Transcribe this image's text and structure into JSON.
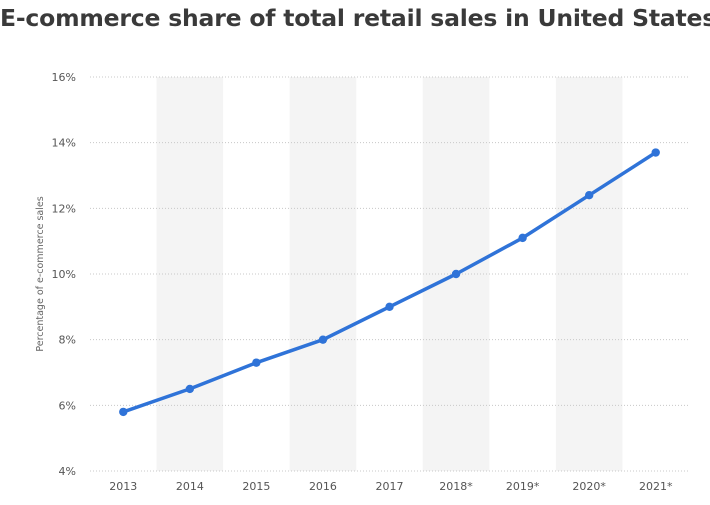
{
  "chart_data": {
    "type": "line",
    "title": "E-commerce share of total retail sales in United States",
    "xlabel": "",
    "ylabel": "Percentage of e-commerce sales",
    "categories": [
      "2013",
      "2014",
      "2015",
      "2016",
      "2017",
      "2018*",
      "2019*",
      "2020*",
      "2021*"
    ],
    "values": [
      5.8,
      6.5,
      7.3,
      8.0,
      9.0,
      10.0,
      11.1,
      12.4,
      13.7
    ],
    "ylim": [
      4,
      16
    ],
    "yticks": [
      4,
      6,
      8,
      10,
      12,
      14,
      16
    ],
    "ytick_labels": [
      "4%",
      "6%",
      "8%",
      "10%",
      "12%",
      "14%",
      "16%"
    ],
    "grid": "dotted horizontal",
    "alternating_column_shading": true,
    "legend": "none",
    "colors": {
      "line": "#2f73d8",
      "shade": "#f4f4f4",
      "grid": "#c8c8c8",
      "title": "#3a3a3a"
    }
  }
}
